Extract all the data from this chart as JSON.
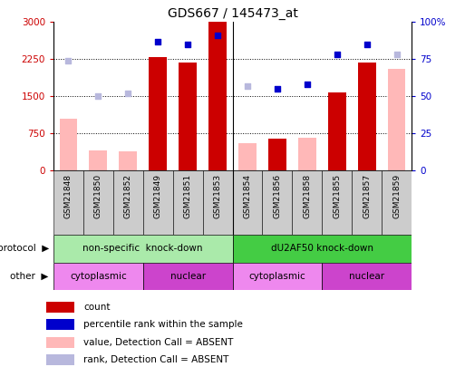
{
  "title": "GDS667 / 145473_at",
  "samples": [
    "GSM21848",
    "GSM21850",
    "GSM21852",
    "GSM21849",
    "GSM21851",
    "GSM21853",
    "GSM21854",
    "GSM21856",
    "GSM21858",
    "GSM21855",
    "GSM21857",
    "GSM21859"
  ],
  "count_values": [
    null,
    null,
    null,
    2300,
    2175,
    3000,
    null,
    650,
    null,
    1575,
    2175,
    null
  ],
  "count_absent": [
    1050,
    400,
    390,
    null,
    null,
    null,
    560,
    null,
    670,
    null,
    null,
    2050
  ],
  "rank_values": [
    null,
    null,
    null,
    87,
    85,
    91,
    null,
    55,
    58,
    78,
    85,
    null
  ],
  "rank_absent": [
    74,
    50,
    52,
    null,
    null,
    null,
    57,
    null,
    null,
    null,
    null,
    78
  ],
  "ylim_left": [
    0,
    3000
  ],
  "ylim_right": [
    0,
    100
  ],
  "yticks_left": [
    0,
    750,
    1500,
    2250,
    3000
  ],
  "yticks_right": [
    0,
    25,
    50,
    75,
    100
  ],
  "ytick_labels_left": [
    "0",
    "750",
    "1500",
    "2250",
    "3000"
  ],
  "ytick_labels_right": [
    "0",
    "25",
    "50",
    "75",
    "100%"
  ],
  "color_count": "#cc0000",
  "color_rank": "#0000cc",
  "color_absent_val": "#ffb8b8",
  "color_absent_rank": "#b8b8dd",
  "protocol_groups": [
    {
      "label": "non-specific  knock-down",
      "start": 0,
      "end": 6,
      "color": "#aaeaaa"
    },
    {
      "label": "dU2AF50 knock-down",
      "start": 6,
      "end": 12,
      "color": "#44cc44"
    }
  ],
  "other_groups": [
    {
      "label": "cytoplasmic",
      "start": 0,
      "end": 3,
      "color": "#ee88ee"
    },
    {
      "label": "nuclear",
      "start": 3,
      "end": 6,
      "color": "#cc44cc"
    },
    {
      "label": "cytoplasmic",
      "start": 6,
      "end": 9,
      "color": "#ee88ee"
    },
    {
      "label": "nuclear",
      "start": 9,
      "end": 12,
      "color": "#cc44cc"
    }
  ],
  "legend_items": [
    {
      "label": "count",
      "color": "#cc0000"
    },
    {
      "label": "percentile rank within the sample",
      "color": "#0000cc"
    },
    {
      "label": "value, Detection Call = ABSENT",
      "color": "#ffb8b8"
    },
    {
      "label": "rank, Detection Call = ABSENT",
      "color": "#b8b8dd"
    }
  ],
  "bar_width": 0.6,
  "tick_label_bg": "#cccccc",
  "spine_color": "#000000"
}
